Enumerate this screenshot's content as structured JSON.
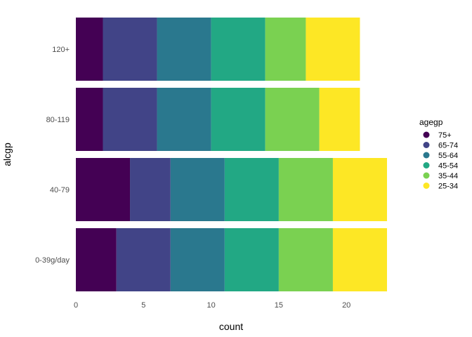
{
  "chart_data": {
    "type": "bar",
    "orientation": "horizontal",
    "stacked": true,
    "title": "",
    "xlabel": "count",
    "ylabel": "alcgp",
    "xlim": [
      0,
      23
    ],
    "xticks": [
      0,
      5,
      10,
      15,
      20
    ],
    "categories": [
      "0-39g/day",
      "40-79",
      "80-119",
      "120+"
    ],
    "legend": {
      "title": "agegp",
      "placement": "right"
    },
    "series": [
      {
        "name": "75+",
        "color": "#440154",
        "values": [
          3,
          4,
          2,
          2
        ]
      },
      {
        "name": "65-74",
        "color": "#414487",
        "values": [
          4,
          3,
          4,
          4
        ]
      },
      {
        "name": "55-64",
        "color": "#2A788E",
        "values": [
          4,
          4,
          4,
          4
        ]
      },
      {
        "name": "45-54",
        "color": "#22A884",
        "values": [
          4,
          4,
          4,
          4
        ]
      },
      {
        "name": "35-44",
        "color": "#7AD151",
        "values": [
          4,
          4,
          4,
          3
        ]
      },
      {
        "name": "25-34",
        "color": "#FDE725",
        "values": [
          4,
          4,
          3,
          4
        ]
      }
    ],
    "grid": false
  }
}
